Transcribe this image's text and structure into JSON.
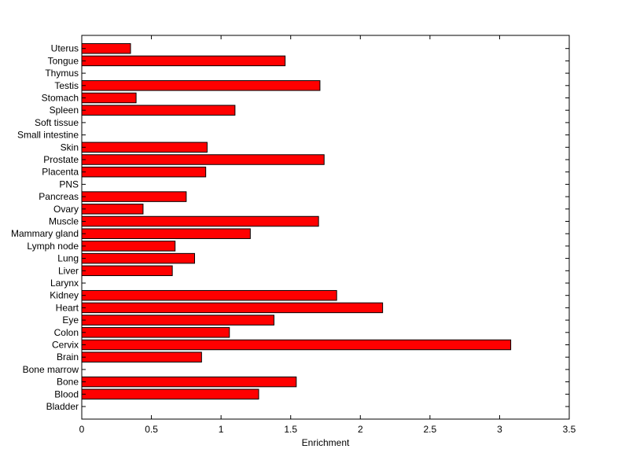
{
  "chart_data": {
    "type": "bar",
    "orientation": "horizontal",
    "xlabel": "Enrichment",
    "ylabel": "",
    "xlim": [
      0,
      3.5
    ],
    "xticks": [
      0,
      0.5,
      1,
      1.5,
      2,
      2.5,
      3,
      3.5
    ],
    "xtick_labels": [
      "0",
      "0.5",
      "1",
      "1.5",
      "2",
      "2.5",
      "3",
      "3.5"
    ],
    "grid": false,
    "bar_color": "#ff0000",
    "edge_color": "#000000",
    "categories": [
      "Bladder",
      "Blood",
      "Bone",
      "Bone marrow",
      "Brain",
      "Cervix",
      "Colon",
      "Eye",
      "Heart",
      "Kidney",
      "Larynx",
      "Liver",
      "Lung",
      "Lymph node",
      "Mammary gland",
      "Muscle",
      "Ovary",
      "Pancreas",
      "PNS",
      "Placenta",
      "Prostate",
      "Skin",
      "Small intestine",
      "Soft tissue",
      "Spleen",
      "Stomach",
      "Testis",
      "Thymus",
      "Tongue",
      "Uterus"
    ],
    "values": [
      0,
      1.27,
      1.54,
      0,
      0.86,
      3.08,
      1.06,
      1.38,
      2.16,
      1.83,
      0,
      0.65,
      0.81,
      0.67,
      1.21,
      1.7,
      0.44,
      0.75,
      0,
      0.89,
      1.74,
      0.9,
      0,
      0,
      1.1,
      0.39,
      1.71,
      0,
      1.46,
      0.35
    ]
  }
}
